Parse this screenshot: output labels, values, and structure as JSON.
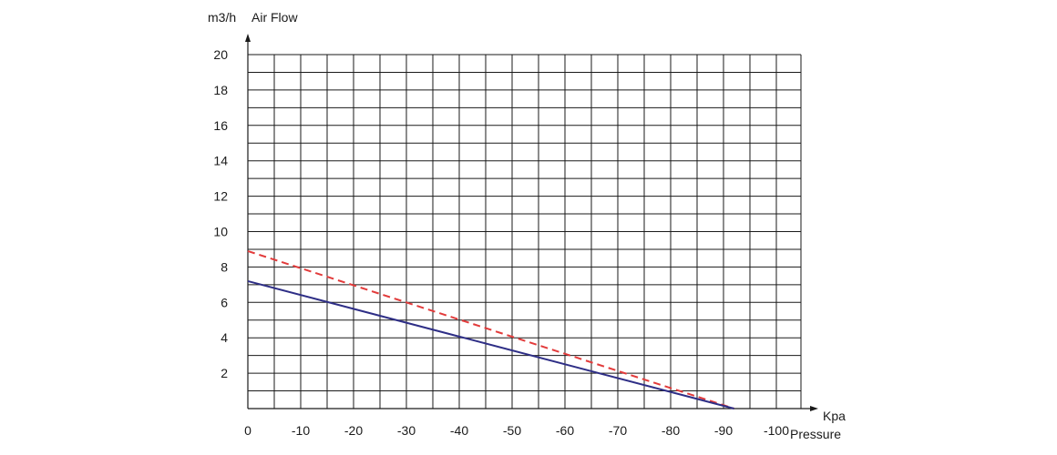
{
  "chart_data": {
    "type": "line",
    "title": "",
    "ylabel_unit": "m3/h",
    "ylabel": "Air Flow",
    "xlabel_unit": "Kpa",
    "xlabel": "Pressure",
    "xlim": [
      0,
      -105
    ],
    "ylim": [
      0,
      20
    ],
    "x_ticks": [
      0,
      -10,
      -20,
      -30,
      -40,
      -50,
      -60,
      -70,
      -80,
      -90,
      -100
    ],
    "x_tick_labels": [
      "0",
      "-10",
      "-20",
      "-30",
      "-40",
      "-50",
      "-60",
      "-70",
      "-80",
      "-90",
      "-100"
    ],
    "y_ticks": [
      2,
      4,
      6,
      8,
      10,
      12,
      14,
      16,
      18,
      20
    ],
    "y_tick_labels": [
      "2",
      "4",
      "6",
      "8",
      "10",
      "12",
      "14",
      "16",
      "18",
      "20"
    ],
    "grid": true,
    "grid_x_step": 5,
    "grid_y_step": 1,
    "series": [
      {
        "color": "#e23b3b",
        "style": "dashed",
        "points": [
          [
            0,
            8.9
          ],
          [
            -92,
            0
          ]
        ]
      },
      {
        "color": "#2e2e86",
        "style": "solid",
        "points": [
          [
            0,
            7.2
          ],
          [
            -92,
            0
          ]
        ]
      }
    ]
  }
}
